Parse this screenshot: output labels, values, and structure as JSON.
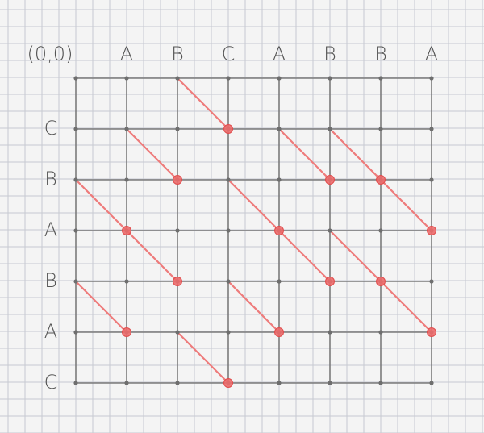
{
  "chart_data": {
    "type": "diagram",
    "origin_label": "(0,0)",
    "top_labels": [
      "A",
      "B",
      "C",
      "A",
      "B",
      "B",
      "A"
    ],
    "left_labels": [
      "C",
      "B",
      "A",
      "B",
      "A",
      "C"
    ],
    "grid": {
      "columns": 8,
      "rows": 7
    },
    "diagonal_edges": [
      {
        "from": [
          2,
          0
        ],
        "to": [
          3,
          1
        ]
      },
      {
        "from": [
          1,
          1
        ],
        "to": [
          2,
          2
        ]
      },
      {
        "from": [
          4,
          1
        ],
        "to": [
          5,
          2
        ]
      },
      {
        "from": [
          5,
          1
        ],
        "to": [
          6,
          2
        ]
      },
      {
        "from": [
          0,
          2
        ],
        "to": [
          1,
          3
        ]
      },
      {
        "from": [
          3,
          2
        ],
        "to": [
          4,
          3
        ]
      },
      {
        "from": [
          6,
          2
        ],
        "to": [
          7,
          3
        ]
      },
      {
        "from": [
          1,
          3
        ],
        "to": [
          2,
          4
        ]
      },
      {
        "from": [
          4,
          3
        ],
        "to": [
          5,
          4
        ]
      },
      {
        "from": [
          5,
          3
        ],
        "to": [
          6,
          4
        ]
      },
      {
        "from": [
          0,
          4
        ],
        "to": [
          1,
          5
        ]
      },
      {
        "from": [
          3,
          4
        ],
        "to": [
          4,
          5
        ]
      },
      {
        "from": [
          6,
          4
        ],
        "to": [
          7,
          5
        ]
      },
      {
        "from": [
          2,
          5
        ],
        "to": [
          3,
          6
        ]
      }
    ],
    "colors": {
      "grid": "#7b7b7b",
      "diagonal": "#ee7b7b",
      "match_dot": "#ec6a6a",
      "paper": "#f4f4f4",
      "paper_grid": "#c6c9d2"
    }
  }
}
